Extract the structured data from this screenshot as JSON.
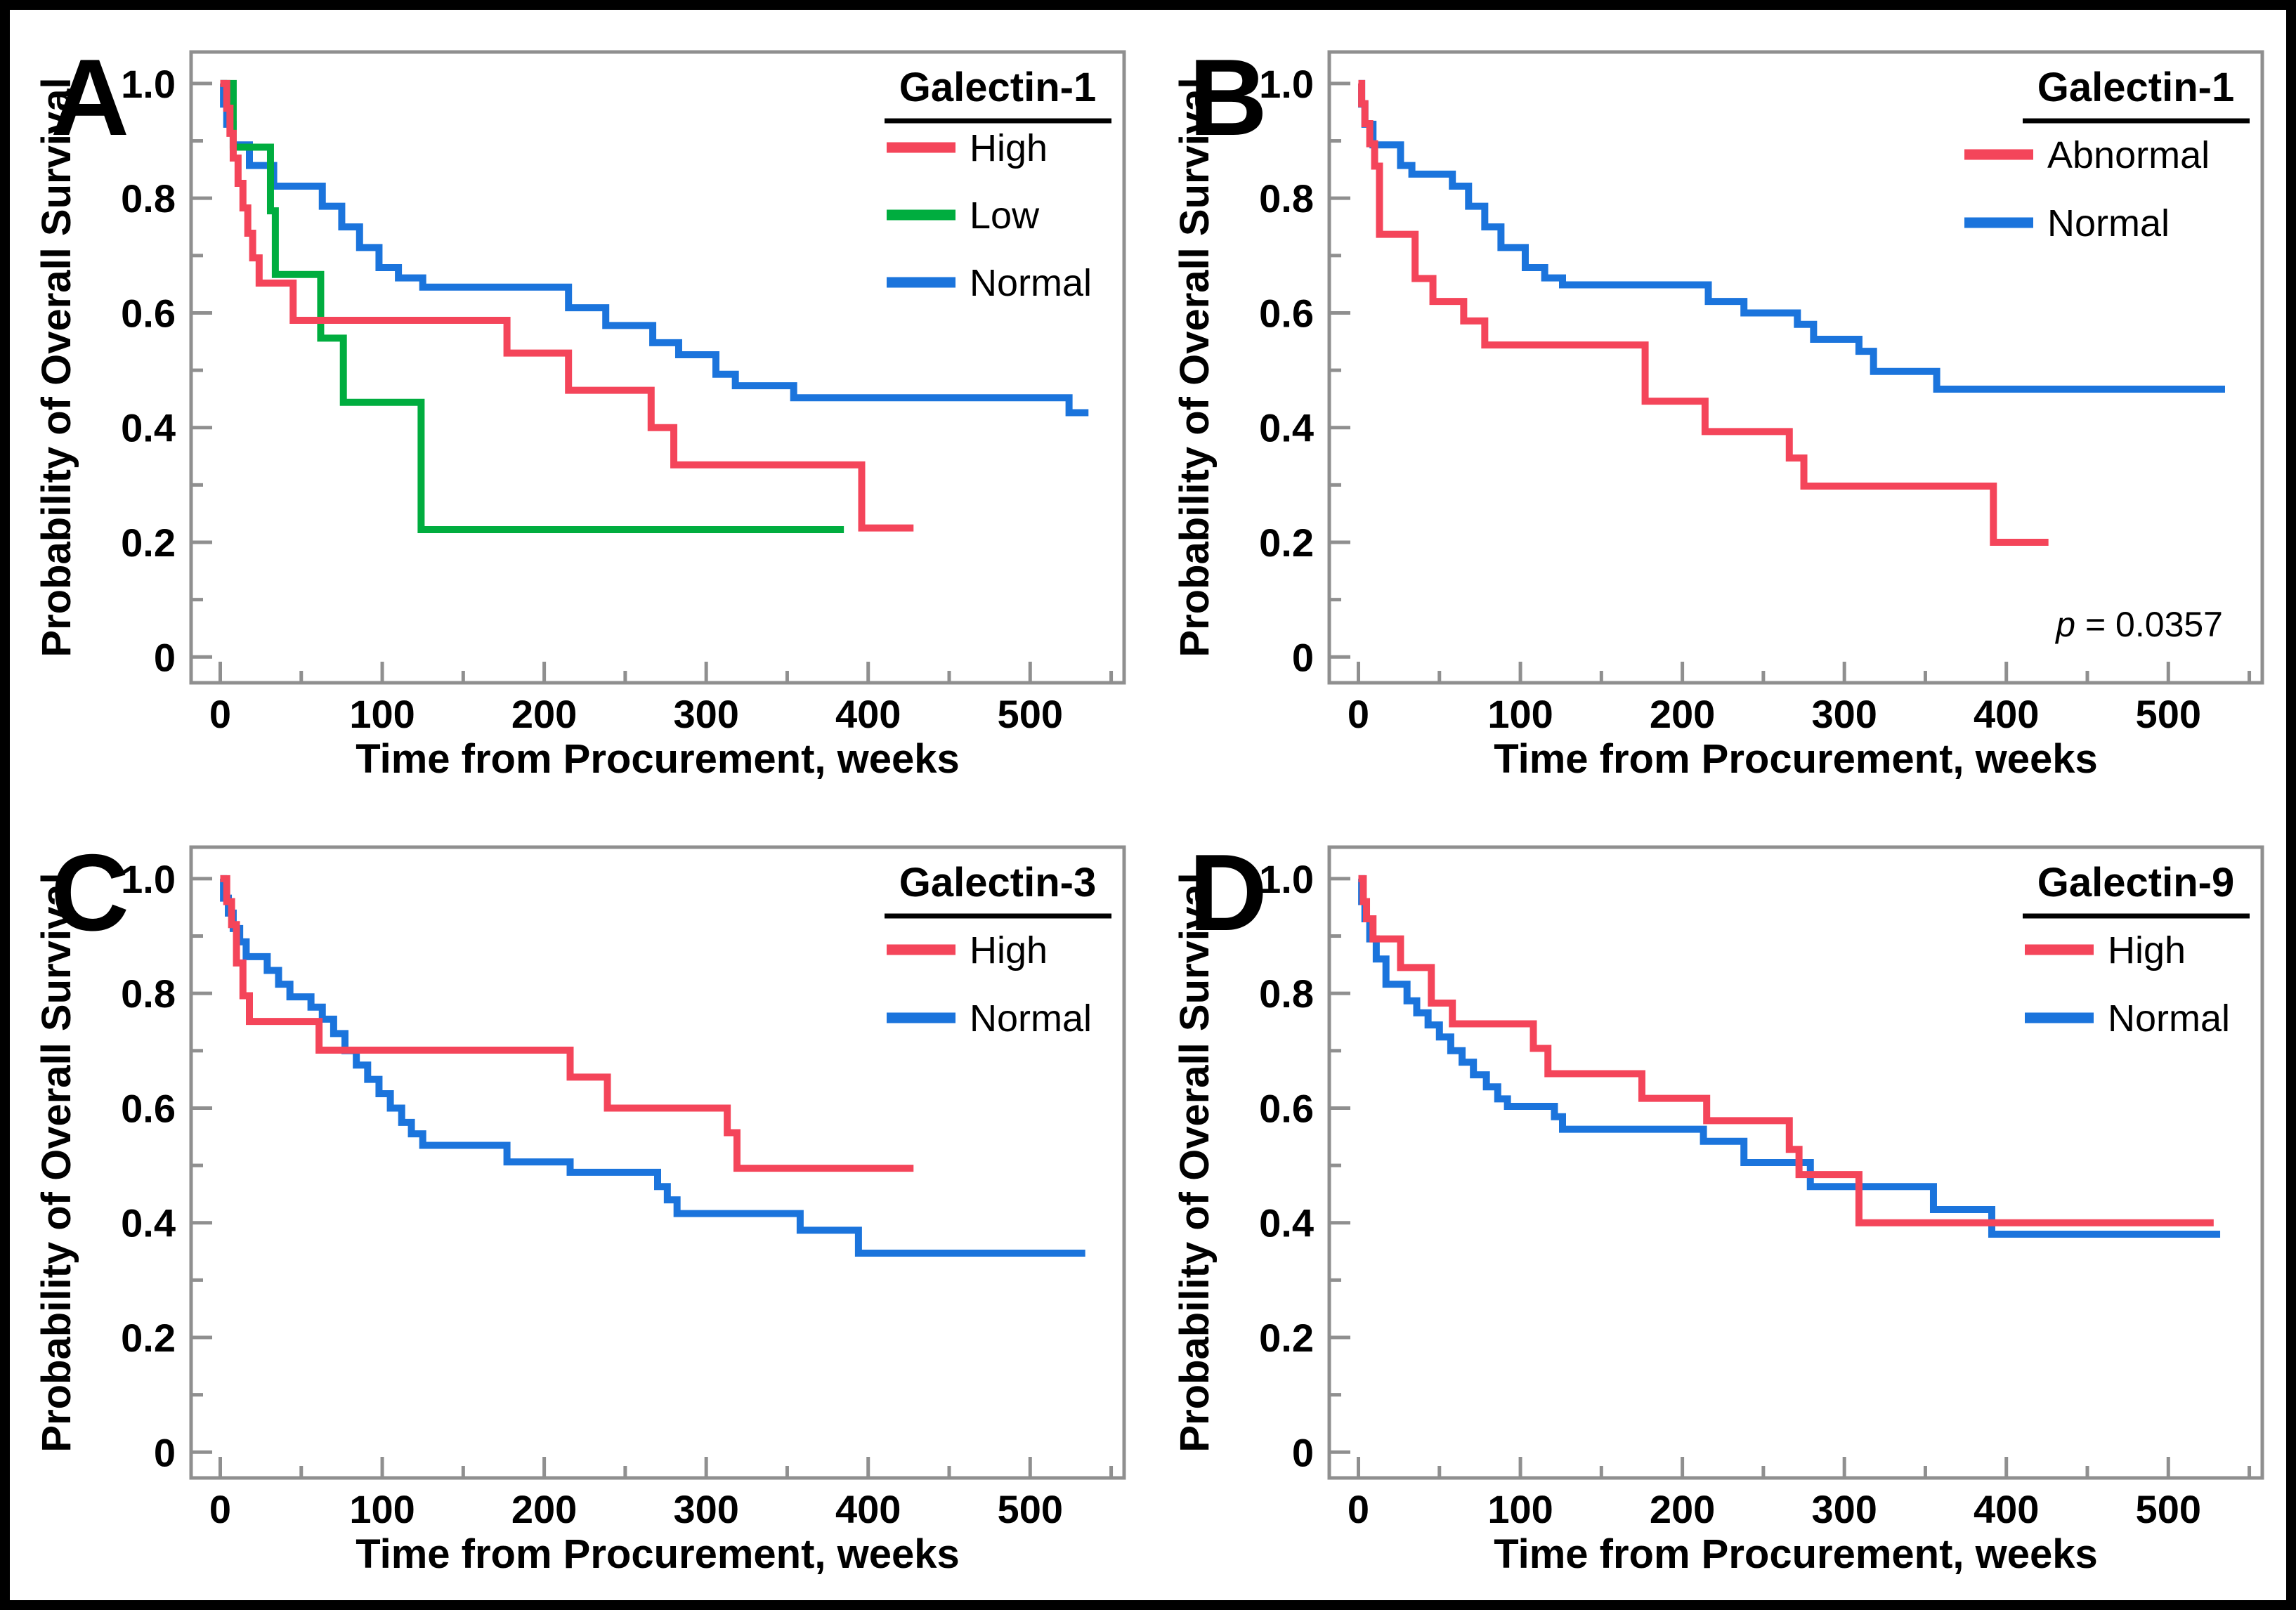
{
  "figure": {
    "background": "#ffffff",
    "border_color": "#000000",
    "axis_color": "#8f8f8f",
    "text_color": "#000000",
    "curve_colors": {
      "red": "#F4455A",
      "green": "#00AD3F",
      "blue": "#1B74DC"
    }
  },
  "axes": {
    "x_label": "Time from Procurement, weeks",
    "y_label": "Probability of Overall Survival",
    "x_tick_labels": [
      "0",
      "100",
      "200",
      "300",
      "400",
      "500"
    ],
    "y_tick_labels": [
      "1.0",
      "0.8",
      "0.6",
      "0.4",
      "0.2",
      "0"
    ]
  },
  "chart_data": [
    {
      "panel": "A",
      "type": "line",
      "subtype": "kaplan-meier-step",
      "title": "Galectin-1",
      "xlabel": "Time from Procurement, weeks",
      "ylabel": "Probability of Overall Survival",
      "xlim": [
        -18,
        558
      ],
      "ylim": [
        -0.045,
        1.055
      ],
      "xticks": [
        0,
        100,
        200,
        300,
        400,
        500
      ],
      "xminorticks": [
        50,
        150,
        250,
        350,
        450,
        550
      ],
      "yticks": [
        1.0,
        0.8,
        0.6,
        0.4,
        0.2,
        0
      ],
      "yminorticks": [
        0.9,
        0.7,
        0.5,
        0.3,
        0.1
      ],
      "grid": false,
      "legend_position": "top-right",
      "legend_order": [
        "High",
        "Low",
        "Normal"
      ],
      "series": [
        {
          "name": "Normal",
          "color": "#1B74DC",
          "points": [
            [
              0,
              1.0
            ],
            [
              2,
              0.964
            ],
            [
              4,
              0.929
            ],
            [
              8,
              0.893
            ],
            [
              18,
              0.857
            ],
            [
              33,
              0.821
            ],
            [
              63,
              0.786
            ],
            [
              75,
              0.75
            ],
            [
              86,
              0.714
            ],
            [
              98,
              0.679
            ],
            [
              110,
              0.661
            ],
            [
              125,
              0.645
            ],
            [
              215,
              0.609
            ],
            [
              238,
              0.578
            ],
            [
              267,
              0.548
            ],
            [
              283,
              0.527
            ],
            [
              306,
              0.493
            ],
            [
              318,
              0.473
            ],
            [
              354,
              0.452
            ],
            [
              523,
              0.452
            ],
            [
              524,
              0.426
            ],
            [
              536,
              0.426
            ]
          ]
        },
        {
          "name": "Low",
          "color": "#00AD3F",
          "points": [
            [
              0,
              1.0
            ],
            [
              8,
              0.889
            ],
            [
              31,
              0.778
            ],
            [
              34,
              0.667
            ],
            [
              62,
              0.556
            ],
            [
              76,
              0.444
            ],
            [
              124,
              0.222
            ],
            [
              385,
              0.222
            ]
          ]
        },
        {
          "name": "High",
          "color": "#F4455A",
          "points": [
            [
              0,
              1.0
            ],
            [
              4,
              0.957
            ],
            [
              6,
              0.913
            ],
            [
              8,
              0.87
            ],
            [
              11,
              0.826
            ],
            [
              14,
              0.783
            ],
            [
              17,
              0.739
            ],
            [
              20,
              0.696
            ],
            [
              24,
              0.652
            ],
            [
              45,
              0.587
            ],
            [
              177,
              0.53
            ],
            [
              215,
              0.465
            ],
            [
              266,
              0.4
            ],
            [
              280,
              0.335
            ],
            [
              396,
              0.225
            ],
            [
              428,
              0.225
            ]
          ]
        }
      ]
    },
    {
      "panel": "B",
      "type": "line",
      "subtype": "kaplan-meier-step",
      "title": "Galectin-1",
      "p_value_text": "p = 0.0357",
      "xlabel": "Time from Procurement, weeks",
      "ylabel": "Probability of Overall Survival",
      "xlim": [
        -18,
        558
      ],
      "ylim": [
        -0.045,
        1.055
      ],
      "xticks": [
        0,
        100,
        200,
        300,
        400,
        500
      ],
      "xminorticks": [
        50,
        150,
        250,
        350,
        450,
        550
      ],
      "yticks": [
        1.0,
        0.8,
        0.6,
        0.4,
        0.2,
        0
      ],
      "yminorticks": [
        0.9,
        0.7,
        0.5,
        0.3,
        0.1
      ],
      "grid": false,
      "legend_position": "top-right",
      "legend_order": [
        "Abnormal",
        "Normal"
      ],
      "legend_dx": -86,
      "series": [
        {
          "name": "Normal",
          "color": "#1B74DC",
          "points": [
            [
              0,
              1.0
            ],
            [
              2,
              0.964
            ],
            [
              4,
              0.929
            ],
            [
              9,
              0.893
            ],
            [
              26,
              0.857
            ],
            [
              33,
              0.842
            ],
            [
              58,
              0.821
            ],
            [
              68,
              0.786
            ],
            [
              78,
              0.75
            ],
            [
              88,
              0.714
            ],
            [
              103,
              0.679
            ],
            [
              115,
              0.661
            ],
            [
              126,
              0.649
            ],
            [
              216,
              0.62
            ],
            [
              238,
              0.6
            ],
            [
              271,
              0.58
            ],
            [
              281,
              0.554
            ],
            [
              309,
              0.533
            ],
            [
              318,
              0.498
            ],
            [
              357,
              0.467
            ],
            [
              535,
              0.467
            ]
          ]
        },
        {
          "name": "Abnormal",
          "color": "#F4455A",
          "points": [
            [
              0,
              1.0
            ],
            [
              2,
              0.965
            ],
            [
              4,
              0.93
            ],
            [
              7,
              0.895
            ],
            [
              10,
              0.856
            ],
            [
              13,
              0.737
            ],
            [
              35,
              0.66
            ],
            [
              46,
              0.62
            ],
            [
              65,
              0.586
            ],
            [
              78,
              0.544
            ],
            [
              177,
              0.446
            ],
            [
              214,
              0.393
            ],
            [
              266,
              0.347
            ],
            [
              275,
              0.298
            ],
            [
              392,
              0.2
            ],
            [
              426,
              0.2
            ]
          ]
        }
      ]
    },
    {
      "panel": "C",
      "type": "line",
      "subtype": "kaplan-meier-step",
      "title": "Galectin-3",
      "xlabel": "Time from Procurement, weeks",
      "ylabel": "Probability of Overall Survival",
      "xlim": [
        -18,
        558
      ],
      "ylim": [
        -0.045,
        1.055
      ],
      "xticks": [
        0,
        100,
        200,
        300,
        400,
        500
      ],
      "xminorticks": [
        50,
        150,
        250,
        350,
        450,
        550
      ],
      "yticks": [
        1.0,
        0.8,
        0.6,
        0.4,
        0.2,
        0
      ],
      "yminorticks": [
        0.9,
        0.7,
        0.5,
        0.3,
        0.1
      ],
      "grid": false,
      "legend_position": "top-right",
      "legend_order": [
        "High",
        "Normal"
      ],
      "series": [
        {
          "name": "Normal",
          "color": "#1B74DC",
          "points": [
            [
              0,
              1.0
            ],
            [
              2,
              0.966
            ],
            [
              5,
              0.94
            ],
            [
              8,
              0.913
            ],
            [
              12,
              0.89
            ],
            [
              16,
              0.864
            ],
            [
              29,
              0.84
            ],
            [
              36,
              0.816
            ],
            [
              43,
              0.794
            ],
            [
              56,
              0.776
            ],
            [
              63,
              0.755
            ],
            [
              70,
              0.73
            ],
            [
              77,
              0.7
            ],
            [
              84,
              0.675
            ],
            [
              91,
              0.65
            ],
            [
              98,
              0.625
            ],
            [
              105,
              0.6
            ],
            [
              112,
              0.575
            ],
            [
              118,
              0.555
            ],
            [
              125,
              0.535
            ],
            [
              177,
              0.506
            ],
            [
              216,
              0.488
            ],
            [
              270,
              0.463
            ],
            [
              276,
              0.44
            ],
            [
              282,
              0.416
            ],
            [
              358,
              0.387
            ],
            [
              394,
              0.347
            ],
            [
              534,
              0.347
            ]
          ]
        },
        {
          "name": "High",
          "color": "#F4455A",
          "points": [
            [
              0,
              1.0
            ],
            [
              4,
              0.96
            ],
            [
              7,
              0.92
            ],
            [
              10,
              0.853
            ],
            [
              14,
              0.796
            ],
            [
              18,
              0.751
            ],
            [
              61,
              0.701
            ],
            [
              216,
              0.654
            ],
            [
              239,
              0.6
            ],
            [
              313,
              0.557
            ],
            [
              319,
              0.495
            ],
            [
              428,
              0.495
            ]
          ]
        }
      ]
    },
    {
      "panel": "D",
      "type": "line",
      "subtype": "kaplan-meier-step",
      "title": "Galectin-9",
      "xlabel": "Time from Procurement, weeks",
      "ylabel": "Probability of Overall Survival",
      "xlim": [
        -18,
        558
      ],
      "ylim": [
        -0.045,
        1.055
      ],
      "xticks": [
        0,
        100,
        200,
        300,
        400,
        500
      ],
      "xminorticks": [
        50,
        150,
        250,
        350,
        450,
        550
      ],
      "yticks": [
        1.0,
        0.8,
        0.6,
        0.4,
        0.2,
        0
      ],
      "yminorticks": [
        0.9,
        0.7,
        0.5,
        0.3,
        0.1
      ],
      "grid": false,
      "legend_position": "top-right",
      "legend_order": [
        "High",
        "Normal"
      ],
      "series": [
        {
          "name": "Normal",
          "color": "#1B74DC",
          "points": [
            [
              0,
              1.0
            ],
            [
              2,
              0.96
            ],
            [
              4,
              0.93
            ],
            [
              7,
              0.895
            ],
            [
              11,
              0.86
            ],
            [
              17,
              0.816
            ],
            [
              30,
              0.787
            ],
            [
              36,
              0.766
            ],
            [
              43,
              0.745
            ],
            [
              50,
              0.724
            ],
            [
              57,
              0.7
            ],
            [
              64,
              0.68
            ],
            [
              71,
              0.658
            ],
            [
              79,
              0.637
            ],
            [
              86,
              0.616
            ],
            [
              92,
              0.603
            ],
            [
              121,
              0.585
            ],
            [
              126,
              0.563
            ],
            [
              213,
              0.542
            ],
            [
              238,
              0.505
            ],
            [
              279,
              0.463
            ],
            [
              355,
              0.423
            ],
            [
              391,
              0.38
            ],
            [
              532,
              0.38
            ]
          ]
        },
        {
          "name": "High",
          "color": "#F4455A",
          "points": [
            [
              0,
              1.0
            ],
            [
              3,
              0.96
            ],
            [
              5,
              0.93
            ],
            [
              9,
              0.895
            ],
            [
              26,
              0.845
            ],
            [
              45,
              0.783
            ],
            [
              58,
              0.747
            ],
            [
              108,
              0.704
            ],
            [
              117,
              0.66
            ],
            [
              175,
              0.617
            ],
            [
              215,
              0.578
            ],
            [
              266,
              0.528
            ],
            [
              272,
              0.484
            ],
            [
              309,
              0.4
            ],
            [
              528,
              0.4
            ]
          ]
        }
      ]
    }
  ]
}
